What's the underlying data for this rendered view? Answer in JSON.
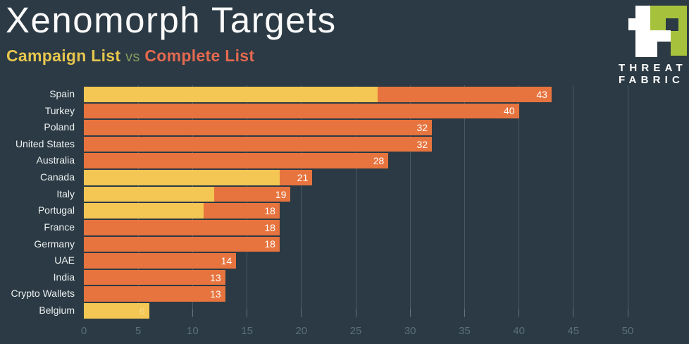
{
  "page": {
    "background": "#2b3a44"
  },
  "header": {
    "title": "Xenomorph Targets",
    "subtitle_campaign": "Campaign List",
    "subtitle_vs": "vs",
    "subtitle_complete": "Complete List"
  },
  "logo": {
    "line1": "THREAT",
    "line2": "FABRIC",
    "mark_green": "#a6c23d",
    "mark_white": "#ffffff"
  },
  "colors": {
    "background": "#2b3a44",
    "bar_complete": "#e7743e",
    "bar_campaign": "#f4c654",
    "subtitle_campaign_text": "#e7c64e",
    "subtitle_vs_text": "#87995f",
    "subtitle_complete_text": "#e4694f",
    "axis_text": "#5c6f7a",
    "gridline": "#6e7e88",
    "category_text": "#edf0f0",
    "value_text": "#ffffff",
    "value_text_on_yellow": "#f7da85"
  },
  "chart_data": {
    "type": "bar",
    "orientation": "horizontal",
    "title": "Xenomorph Targets",
    "subtitle": "Campaign List vs Complete List",
    "legend": [
      {
        "name": "Campaign List",
        "color": "#f4c654"
      },
      {
        "name": "Complete List",
        "color": "#e7743e"
      }
    ],
    "legend_position": "subtitle",
    "categories": [
      "Spain",
      "Turkey",
      "Poland",
      "United States",
      "Australia",
      "Canada",
      "Italy",
      "Portugal",
      "France",
      "Germany",
      "UAE",
      "India",
      "Crypto Wallets",
      "Belgium"
    ],
    "series": [
      {
        "name": "Complete List",
        "color": "#e7743e",
        "values": [
          43,
          40,
          32,
          32,
          28,
          21,
          19,
          18,
          18,
          18,
          14,
          13,
          13,
          6
        ]
      },
      {
        "name": "Campaign List",
        "color": "#f4c654",
        "values": [
          27,
          null,
          null,
          null,
          null,
          18,
          12,
          11,
          null,
          null,
          null,
          null,
          null,
          6
        ]
      }
    ],
    "value_labels": [
      43,
      40,
      32,
      32,
      28,
      21,
      19,
      18,
      18,
      18,
      14,
      13,
      13,
      6
    ],
    "xlabel": "",
    "ylabel": "",
    "xlim": [
      0,
      55.6
    ],
    "x_ticks": [
      0,
      5,
      10,
      15,
      20,
      25,
      30,
      35,
      40,
      45,
      50
    ],
    "grid": true
  }
}
